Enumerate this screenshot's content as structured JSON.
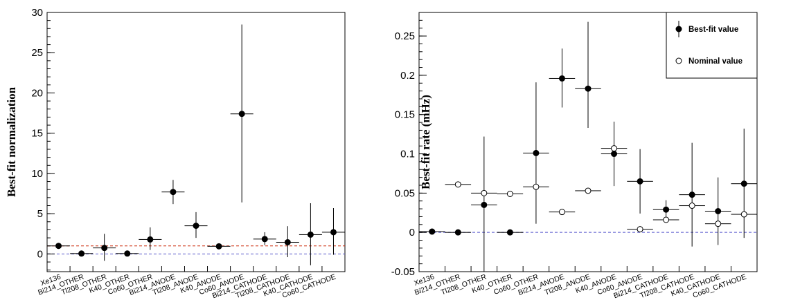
{
  "chart_data": [
    {
      "type": "scatter",
      "ylabel": "Best-fit normalization",
      "xlabel": "",
      "ylim": [
        -2.2,
        30
      ],
      "yticks": [
        "0",
        "5",
        "10",
        "15",
        "20",
        "25",
        "30"
      ],
      "categories": [
        "Xe136",
        "Bi214_OTHER",
        "Tl208_OTHER",
        "K40_OTHER",
        "Co60_OTHER",
        "Bi214_ANODE",
        "Tl208_ANODE",
        "K40_ANODE",
        "Co60_ANODE",
        "Bi214_CATHODE",
        "Tl208_CATHODE",
        "K40_CATHODE",
        "Co60_CATHODE"
      ],
      "series": [
        {
          "values": [
            1.0,
            0.05,
            0.75,
            0.05,
            1.8,
            7.7,
            3.5,
            0.95,
            17.4,
            1.85,
            1.45,
            2.4,
            2.7
          ],
          "err_low": [
            0.0,
            0.0,
            1.6,
            0.0,
            1.3,
            1.5,
            1.5,
            0.3,
            11.0,
            0.75,
            1.85,
            3.8,
            2.8
          ],
          "err_high": [
            0.0,
            0.0,
            1.75,
            0.0,
            1.5,
            1.5,
            1.7,
            0.3,
            11.1,
            0.85,
            2.0,
            3.9,
            3.0
          ]
        }
      ],
      "reference_lines": [
        {
          "y": 1,
          "color": "#cc2200"
        },
        {
          "y": 0,
          "color": "#5555cc"
        }
      ],
      "grid": false
    },
    {
      "type": "scatter",
      "ylabel": "Best-fit rate (mHz)",
      "xlabel": "",
      "ylim": [
        -0.05,
        0.28
      ],
      "yticks": [
        "-0.05",
        "0",
        "0.05",
        "0.1",
        "0.15",
        "0.2",
        "0.25"
      ],
      "categories": [
        "Xe136",
        "Bi214_OTHER",
        "Tl208_OTHER",
        "K40_OTHER",
        "Co60_OTHER",
        "Bi214_ANODE",
        "Tl208_ANODE",
        "K40_ANODE",
        "Co60_ANODE",
        "Bi214_CATHODE",
        "Tl208_CATHODE",
        "K40_CATHODE",
        "Co60_CATHODE"
      ],
      "series": [
        {
          "name": "Best-fit value",
          "marker": "filled",
          "values": [
            0.001,
            0.0,
            0.035,
            0.0,
            0.101,
            0.196,
            0.183,
            0.1,
            0.065,
            0.029,
            0.048,
            0.027,
            0.062
          ],
          "err_low": [
            0.0,
            0.0,
            0.085,
            0.0,
            0.09,
            0.037,
            0.05,
            0.041,
            0.041,
            0.012,
            0.066,
            0.043,
            0.069
          ],
          "err_high": [
            0.0,
            0.0,
            0.087,
            0.0,
            0.09,
            0.038,
            0.085,
            0.041,
            0.041,
            0.012,
            0.066,
            0.043,
            0.07
          ]
        },
        {
          "name": "Nominal value",
          "marker": "open",
          "values": [
            null,
            0.061,
            0.05,
            0.049,
            0.058,
            0.026,
            0.053,
            0.107,
            0.004,
            0.016,
            0.034,
            0.011,
            0.023
          ]
        }
      ],
      "reference_lines": [
        {
          "y": 0,
          "color": "#5555cc"
        }
      ],
      "legend": "top-right",
      "grid": false
    }
  ]
}
